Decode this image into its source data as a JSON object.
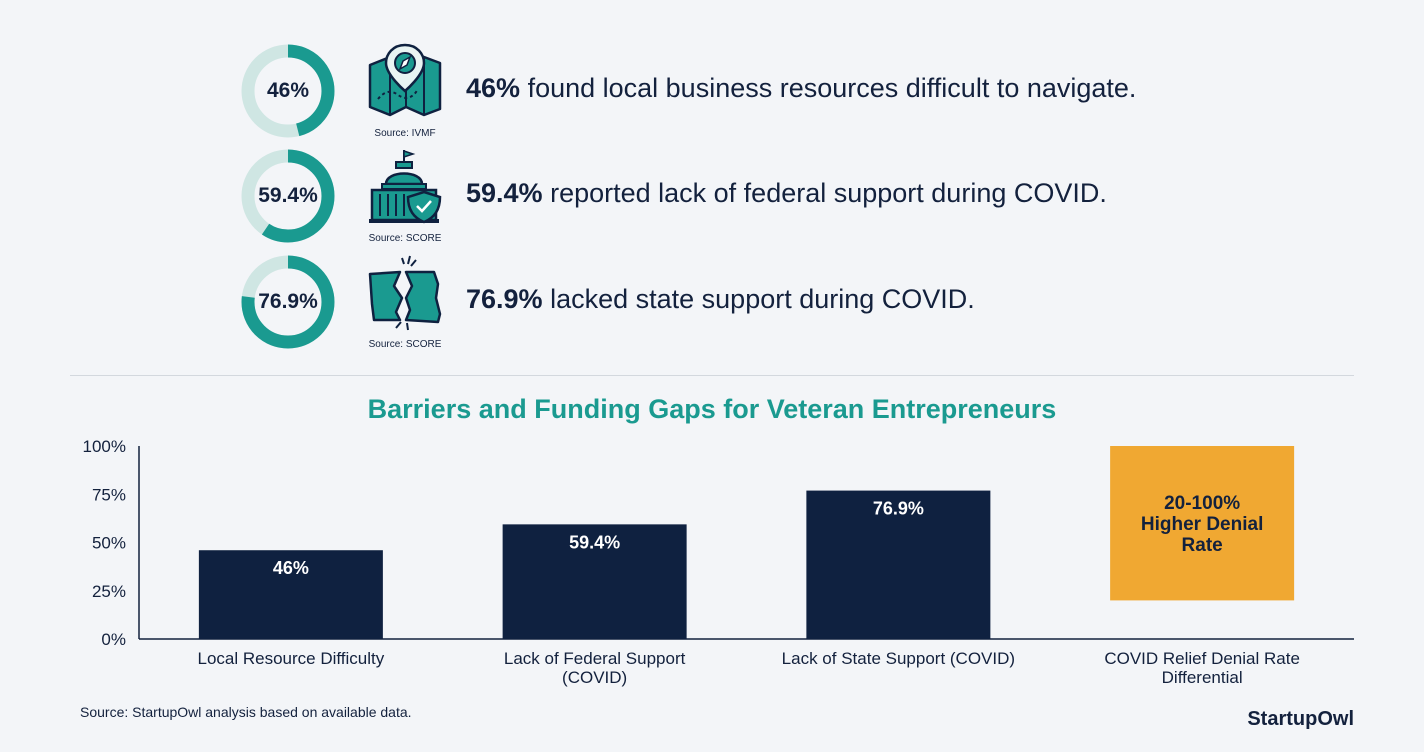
{
  "stats": [
    {
      "value": "46%",
      "percent": 46,
      "headline": "46%",
      "text": "found local business resources difficult to navigate.",
      "source": "Source: IVMF",
      "icon": "map-compass-icon"
    },
    {
      "value": "59.4%",
      "percent": 59.4,
      "headline": "59.4%",
      "text": "reported lack of federal support during COVID.",
      "source": "Source: SCORE",
      "icon": "capitol-shield-icon"
    },
    {
      "value": "76.9%",
      "percent": 76.9,
      "headline": "76.9%",
      "text": "lacked state support during COVID.",
      "source": "Source: SCORE",
      "icon": "broken-map-icon"
    }
  ],
  "colors": {
    "accent": "#1a9a90",
    "track": "#cfe6e3",
    "bar": "#0f2140",
    "highlight": "#f0a832",
    "text": "#13213d"
  },
  "chart_data": {
    "type": "bar",
    "title": "Barriers and Funding Gaps for Veteran Entrepreneurs",
    "categories": [
      "Local Resource Difficulty",
      "Lack of Federal Support (COVID)",
      "Lack of State Support (COVID)",
      "COVID Relief Denial Rate Differential"
    ],
    "category_lines": [
      [
        "Local Resource Difficulty"
      ],
      [
        "Lack of Federal Support",
        "(COVID)"
      ],
      [
        "Lack of State Support (COVID)"
      ],
      [
        "COVID Relief Denial Rate",
        "Differential"
      ]
    ],
    "values": [
      46,
      59.4,
      76.9,
      null
    ],
    "data_labels": [
      "46%",
      "59.4%",
      "76.9%",
      ""
    ],
    "range_bar": {
      "category_index": 3,
      "low": 20,
      "high": 100,
      "label_lines": [
        "20-100%",
        "Higher Denial",
        "Rate"
      ]
    },
    "ylim": [
      0,
      100
    ],
    "yticks": [
      0,
      25,
      50,
      75,
      100
    ],
    "ytick_labels": [
      "0%",
      "25%",
      "50%",
      "75%",
      "100%"
    ],
    "grid": false,
    "legend": "none"
  },
  "footnote": "Source: StartupOwl analysis based on available data.",
  "brand": "StartupOwl"
}
